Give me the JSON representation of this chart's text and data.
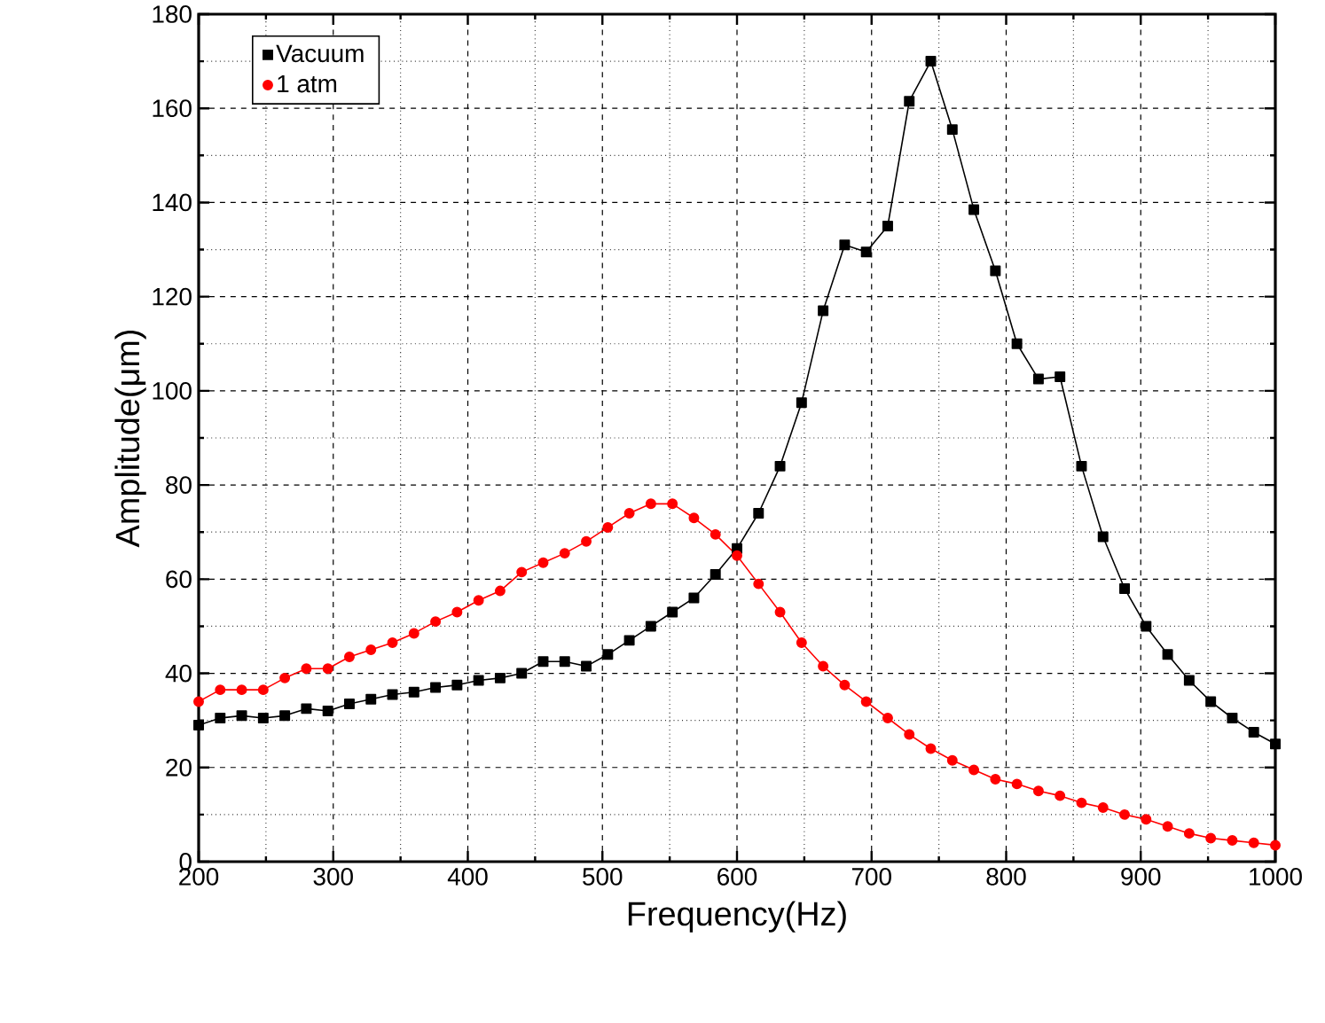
{
  "chart_data": {
    "type": "line",
    "xlabel": "Frequency(Hz)",
    "ylabel": "Amplitude(μm)",
    "x": [
      200,
      216,
      232,
      248,
      264,
      280,
      296,
      312,
      328,
      344,
      360,
      376,
      392,
      408,
      424,
      440,
      456,
      472,
      488,
      504,
      520,
      536,
      552,
      568,
      584,
      600,
      616,
      632,
      648,
      664,
      680,
      696,
      712,
      728,
      744,
      760,
      776,
      792,
      808,
      824,
      840,
      856,
      872,
      888,
      904,
      920,
      936,
      952,
      968,
      984,
      1000
    ],
    "series": [
      {
        "name": "Vacuum",
        "color": "#000000",
        "marker": "square",
        "values": [
          29,
          30.5,
          31,
          30.5,
          31,
          32.5,
          32,
          33.5,
          34.5,
          35.5,
          36,
          37,
          37.5,
          38.5,
          39,
          40,
          42.5,
          42.5,
          41.5,
          44,
          47,
          50,
          53,
          56,
          61,
          66.5,
          74,
          84,
          97.5,
          117,
          131,
          129.5,
          135,
          161.5,
          170,
          155.5,
          138.5,
          125.5,
          110,
          102.5,
          103,
          84,
          69,
          58,
          50,
          44,
          38.5,
          34,
          30.5,
          27.5,
          25
        ]
      },
      {
        "name": "1 atm",
        "color": "#ff0000",
        "marker": "circle",
        "values": [
          34,
          36.5,
          36.5,
          36.5,
          39,
          41,
          41,
          43.5,
          45,
          46.5,
          48.5,
          51,
          53,
          55.5,
          57.5,
          61.5,
          63.5,
          65.5,
          68,
          71,
          74,
          76,
          76,
          73,
          69.5,
          65,
          59,
          53,
          46.5,
          41.5,
          37.5,
          34,
          30.5,
          27,
          24,
          21.5,
          19.5,
          17.5,
          16.5,
          15,
          14,
          12.5,
          11.5,
          10,
          9,
          7.5,
          6,
          5,
          4.5,
          4,
          3.5
        ]
      }
    ],
    "xlim": [
      200,
      1000
    ],
    "ylim": [
      0,
      180
    ],
    "xticks": [
      200,
      300,
      400,
      500,
      600,
      700,
      800,
      900,
      1000
    ],
    "yticks": [
      0,
      20,
      40,
      60,
      80,
      100,
      120,
      140,
      160,
      180
    ],
    "grid": true,
    "legend": "top left",
    "line_style": "solid"
  }
}
